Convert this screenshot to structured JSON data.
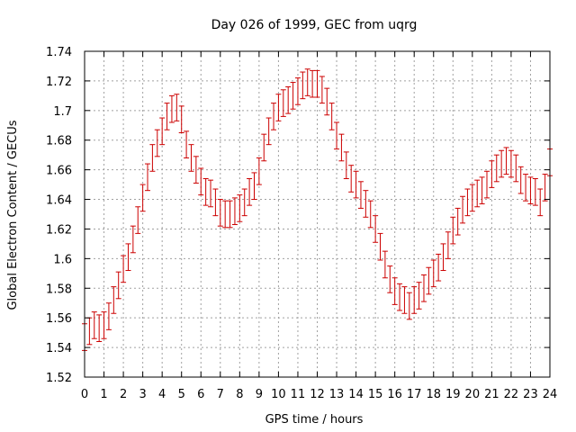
{
  "chart_data": {
    "type": "line",
    "title": "Day 026 of 1999, GEC from uqrg",
    "xlabel": "GPS time / hours",
    "ylabel": "Global Electron Content / GECUs",
    "xlim": [
      0,
      24
    ],
    "ylim": [
      1.52,
      1.74
    ],
    "grid": true,
    "color": "#cc0000",
    "x_ticks": [
      0,
      1,
      2,
      3,
      4,
      5,
      6,
      7,
      8,
      9,
      10,
      11,
      12,
      13,
      14,
      15,
      16,
      17,
      18,
      19,
      20,
      21,
      22,
      23,
      24
    ],
    "y_ticks": [
      1.52,
      1.54,
      1.56,
      1.58,
      1.6,
      1.62,
      1.64,
      1.66,
      1.68,
      1.7,
      1.72,
      1.74
    ],
    "error_bar": 0.009,
    "series": [
      {
        "name": "GEC",
        "x": [
          0,
          0.25,
          0.5,
          0.75,
          1,
          1.25,
          1.5,
          1.75,
          2,
          2.25,
          2.5,
          2.75,
          3,
          3.25,
          3.5,
          3.75,
          4,
          4.25,
          4.5,
          4.75,
          5,
          5.25,
          5.5,
          5.75,
          6,
          6.25,
          6.5,
          6.75,
          7,
          7.25,
          7.5,
          7.75,
          8,
          8.25,
          8.5,
          8.75,
          9,
          9.25,
          9.5,
          9.75,
          10,
          10.25,
          10.5,
          10.75,
          11,
          11.25,
          11.5,
          11.75,
          12,
          12.25,
          12.5,
          12.75,
          13,
          13.25,
          13.5,
          13.75,
          14,
          14.25,
          14.5,
          14.75,
          15,
          15.25,
          15.5,
          15.75,
          16,
          16.25,
          16.5,
          16.75,
          17,
          17.25,
          17.5,
          17.75,
          18,
          18.25,
          18.5,
          18.75,
          19,
          19.25,
          19.5,
          19.75,
          20,
          20.25,
          20.5,
          20.75,
          21,
          21.25,
          21.5,
          21.75,
          22,
          22.25,
          22.5,
          22.75,
          23,
          23.25,
          23.5,
          23.75,
          24
        ],
        "values": [
          1.547,
          1.551,
          1.555,
          1.553,
          1.555,
          1.561,
          1.572,
          1.582,
          1.593,
          1.601,
          1.613,
          1.626,
          1.641,
          1.655,
          1.668,
          1.678,
          1.686,
          1.696,
          1.701,
          1.702,
          1.694,
          1.677,
          1.668,
          1.66,
          1.652,
          1.645,
          1.644,
          1.638,
          1.631,
          1.63,
          1.63,
          1.632,
          1.634,
          1.638,
          1.645,
          1.649,
          1.659,
          1.675,
          1.686,
          1.696,
          1.702,
          1.705,
          1.707,
          1.71,
          1.713,
          1.717,
          1.719,
          1.718,
          1.718,
          1.714,
          1.706,
          1.696,
          1.683,
          1.675,
          1.663,
          1.654,
          1.65,
          1.643,
          1.637,
          1.63,
          1.62,
          1.608,
          1.596,
          1.586,
          1.578,
          1.574,
          1.572,
          1.568,
          1.572,
          1.575,
          1.58,
          1.585,
          1.59,
          1.594,
          1.601,
          1.609,
          1.619,
          1.625,
          1.633,
          1.638,
          1.641,
          1.644,
          1.646,
          1.65,
          1.657,
          1.661,
          1.664,
          1.666,
          1.664,
          1.661,
          1.653,
          1.648,
          1.646,
          1.645,
          1.638,
          1.648,
          1.665
        ]
      }
    ]
  }
}
